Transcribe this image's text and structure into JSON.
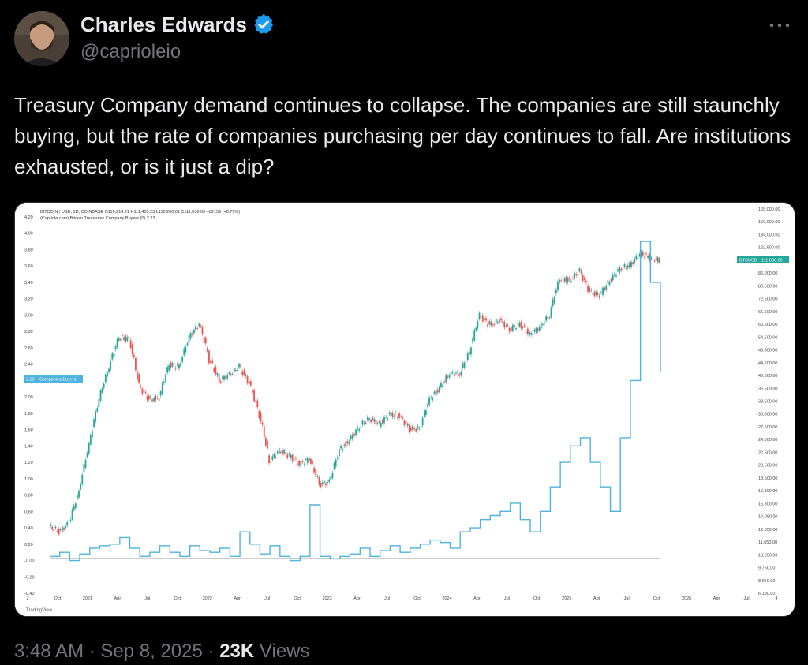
{
  "author": {
    "name": "Charles Edwards",
    "handle": "@caprioleio",
    "verified": true
  },
  "tweet": {
    "text": "Treasury Company demand continues to collapse. The companies are still staunchly buying, but the rate of companies purchasing per day continues to fall. Are institutions exhausted, or is it just a dip?"
  },
  "meta": {
    "time": "3:48 AM",
    "sep1": "·",
    "date": "Sep 8, 2025",
    "sep2": "·",
    "views_count": "23K",
    "views_label": "Views"
  },
  "icons": {
    "verified": "verified-badge-icon",
    "more": "more-horizontal-icon"
  },
  "colors": {
    "background": "#000000",
    "verified": "#1d9bf0",
    "btc_up": "#26a69a",
    "btc_down": "#ef5350",
    "buyers": "#4fb3e0",
    "price_badge": "#26a69a",
    "buyers_badge": "#4fb3e0"
  },
  "chart_data": {
    "type": "line",
    "header_line1": "BITCOIN / USD, 1D, COINBASE  O110,214.21  H111,403.23  L110,200.01  C111,036.69  +82159 (+0.75%)",
    "header_line2": "(Capriole.com) Bitcoin Treasuries Company Buyers (0)  2.23",
    "left_axis": {
      "ticks": [
        "4.20",
        "4.00",
        "3.80",
        "3.60",
        "3.40",
        "3.20",
        "3.00",
        "2.80",
        "2.60",
        "2.40",
        "2.20",
        "2.00",
        "1.80",
        "1.60",
        "1.40",
        "1.20",
        "1.00",
        "0.80",
        "0.60",
        "0.40",
        "0.20",
        "-0.00",
        "-0.20",
        "-0.40"
      ],
      "range": [
        -0.4,
        4.2
      ]
    },
    "right_axis": {
      "ticks": [
        "165,000.00",
        "150,000.00",
        "134,000.00",
        "122,600.00",
        "98,000.00",
        "86,000.00",
        "80,500.00",
        "72,500.00",
        "66,500.00",
        "60,500.00",
        "54,500.00",
        "48,500.00",
        "44,500.00",
        "40,500.00",
        "36,500.00",
        "33,500.00",
        "30,500.00",
        "27,500.00",
        "24,500.00",
        "22,500.00",
        "20,500.00",
        "18,500.00",
        "16,800.00",
        "15,300.00",
        "14,050.00",
        "12,850.00",
        "11,650.00",
        "10,650.00",
        "9,750.00",
        "8,950.00",
        "6,190.00"
      ],
      "scale": "log"
    },
    "x_axis": {
      "ticks": [
        "2",
        "Oct",
        "2021",
        "Apr",
        "Jul",
        "Oct",
        "2022",
        "Apr",
        "Jul",
        "Oct",
        "2023",
        "Apr",
        "Jul",
        "Oct",
        "2024",
        "Apr",
        "Jul",
        "Oct",
        "2025",
        "Apr",
        "Jul",
        "Oct",
        "2026",
        "Apr",
        "Jul",
        "4"
      ]
    },
    "price_badge": {
      "label": "BTCUSD",
      "value": "111,036.69"
    },
    "buyers_badge": {
      "value": "2.23",
      "label": "Companies Buyers"
    },
    "watermark": "TradingView",
    "series": [
      {
        "name": "BITCOIN / USD",
        "kind": "candles",
        "x": [
          "2020-08",
          "2020-09",
          "2020-10",
          "2020-11",
          "2020-12",
          "2021-01",
          "2021-02",
          "2021-03",
          "2021-04",
          "2021-05",
          "2021-06",
          "2021-07",
          "2021-08",
          "2021-09",
          "2021-10",
          "2021-11",
          "2021-12",
          "2022-01",
          "2022-02",
          "2022-03",
          "2022-04",
          "2022-05",
          "2022-06",
          "2022-07",
          "2022-08",
          "2022-09",
          "2022-10",
          "2022-11",
          "2022-12",
          "2023-01",
          "2023-02",
          "2023-03",
          "2023-04",
          "2023-05",
          "2023-06",
          "2023-07",
          "2023-08",
          "2023-09",
          "2023-10",
          "2023-11",
          "2023-12",
          "2024-01",
          "2024-02",
          "2024-03",
          "2024-04",
          "2024-05",
          "2024-06",
          "2024-07",
          "2024-08",
          "2024-09",
          "2024-10",
          "2024-11",
          "2024-12",
          "2025-01",
          "2025-02",
          "2025-03",
          "2025-04",
          "2025-05",
          "2025-06",
          "2025-07",
          "2025-08",
          "2025-09"
        ],
        "values": [
          11500,
          11000,
          11800,
          15500,
          23000,
          34000,
          45000,
          58000,
          57000,
          38000,
          34000,
          34500,
          46000,
          45000,
          58000,
          65000,
          48000,
          40000,
          42000,
          45000,
          39000,
          30000,
          20000,
          22000,
          21000,
          19500,
          20500,
          16500,
          16800,
          22000,
          24000,
          27000,
          29000,
          27500,
          30000,
          29500,
          26500,
          26500,
          34000,
          37500,
          42500,
          42500,
          51000,
          70000,
          64000,
          67000,
          62000,
          65000,
          59000,
          63000,
          70000,
          96000,
          94000,
          102000,
          85000,
          83000,
          94000,
          104000,
          107000,
          118000,
          115000,
          111000
        ]
      },
      {
        "name": "Companies Buyers",
        "kind": "line",
        "x": [
          "2020-08",
          "2020-09",
          "2020-10",
          "2020-11",
          "2020-12",
          "2021-01",
          "2021-02",
          "2021-03",
          "2021-04",
          "2021-05",
          "2021-06",
          "2021-07",
          "2021-08",
          "2021-09",
          "2021-10",
          "2021-11",
          "2021-12",
          "2022-01",
          "2022-02",
          "2022-03",
          "2022-04",
          "2022-05",
          "2022-06",
          "2022-07",
          "2022-08",
          "2022-09",
          "2022-10",
          "2022-11",
          "2022-12",
          "2023-01",
          "2023-02",
          "2023-03",
          "2023-04",
          "2023-05",
          "2023-06",
          "2023-07",
          "2023-08",
          "2023-09",
          "2023-10",
          "2023-11",
          "2023-12",
          "2024-01",
          "2024-02",
          "2024-03",
          "2024-04",
          "2024-05",
          "2024-06",
          "2024-07",
          "2024-08",
          "2024-09",
          "2024-10",
          "2024-11",
          "2024-12",
          "2025-01",
          "2025-02",
          "2025-03",
          "2025-04",
          "2025-05",
          "2025-06",
          "2025-07",
          "2025-08",
          "2025-09"
        ],
        "values": [
          0.05,
          0.1,
          0.0,
          0.08,
          0.15,
          0.18,
          0.2,
          0.28,
          0.15,
          0.05,
          0.1,
          0.18,
          0.1,
          0.05,
          0.18,
          0.12,
          0.1,
          0.15,
          0.05,
          0.35,
          0.2,
          0.08,
          0.18,
          0.05,
          0.0,
          0.05,
          0.68,
          0.05,
          0.02,
          0.05,
          0.08,
          0.15,
          0.05,
          0.12,
          0.18,
          0.1,
          0.15,
          0.2,
          0.25,
          0.22,
          0.15,
          0.35,
          0.4,
          0.5,
          0.55,
          0.6,
          0.7,
          0.5,
          0.35,
          0.6,
          0.9,
          1.2,
          1.4,
          1.5,
          1.2,
          0.9,
          0.6,
          1.5,
          2.2,
          3.9,
          3.4,
          2.3
        ]
      }
    ]
  }
}
